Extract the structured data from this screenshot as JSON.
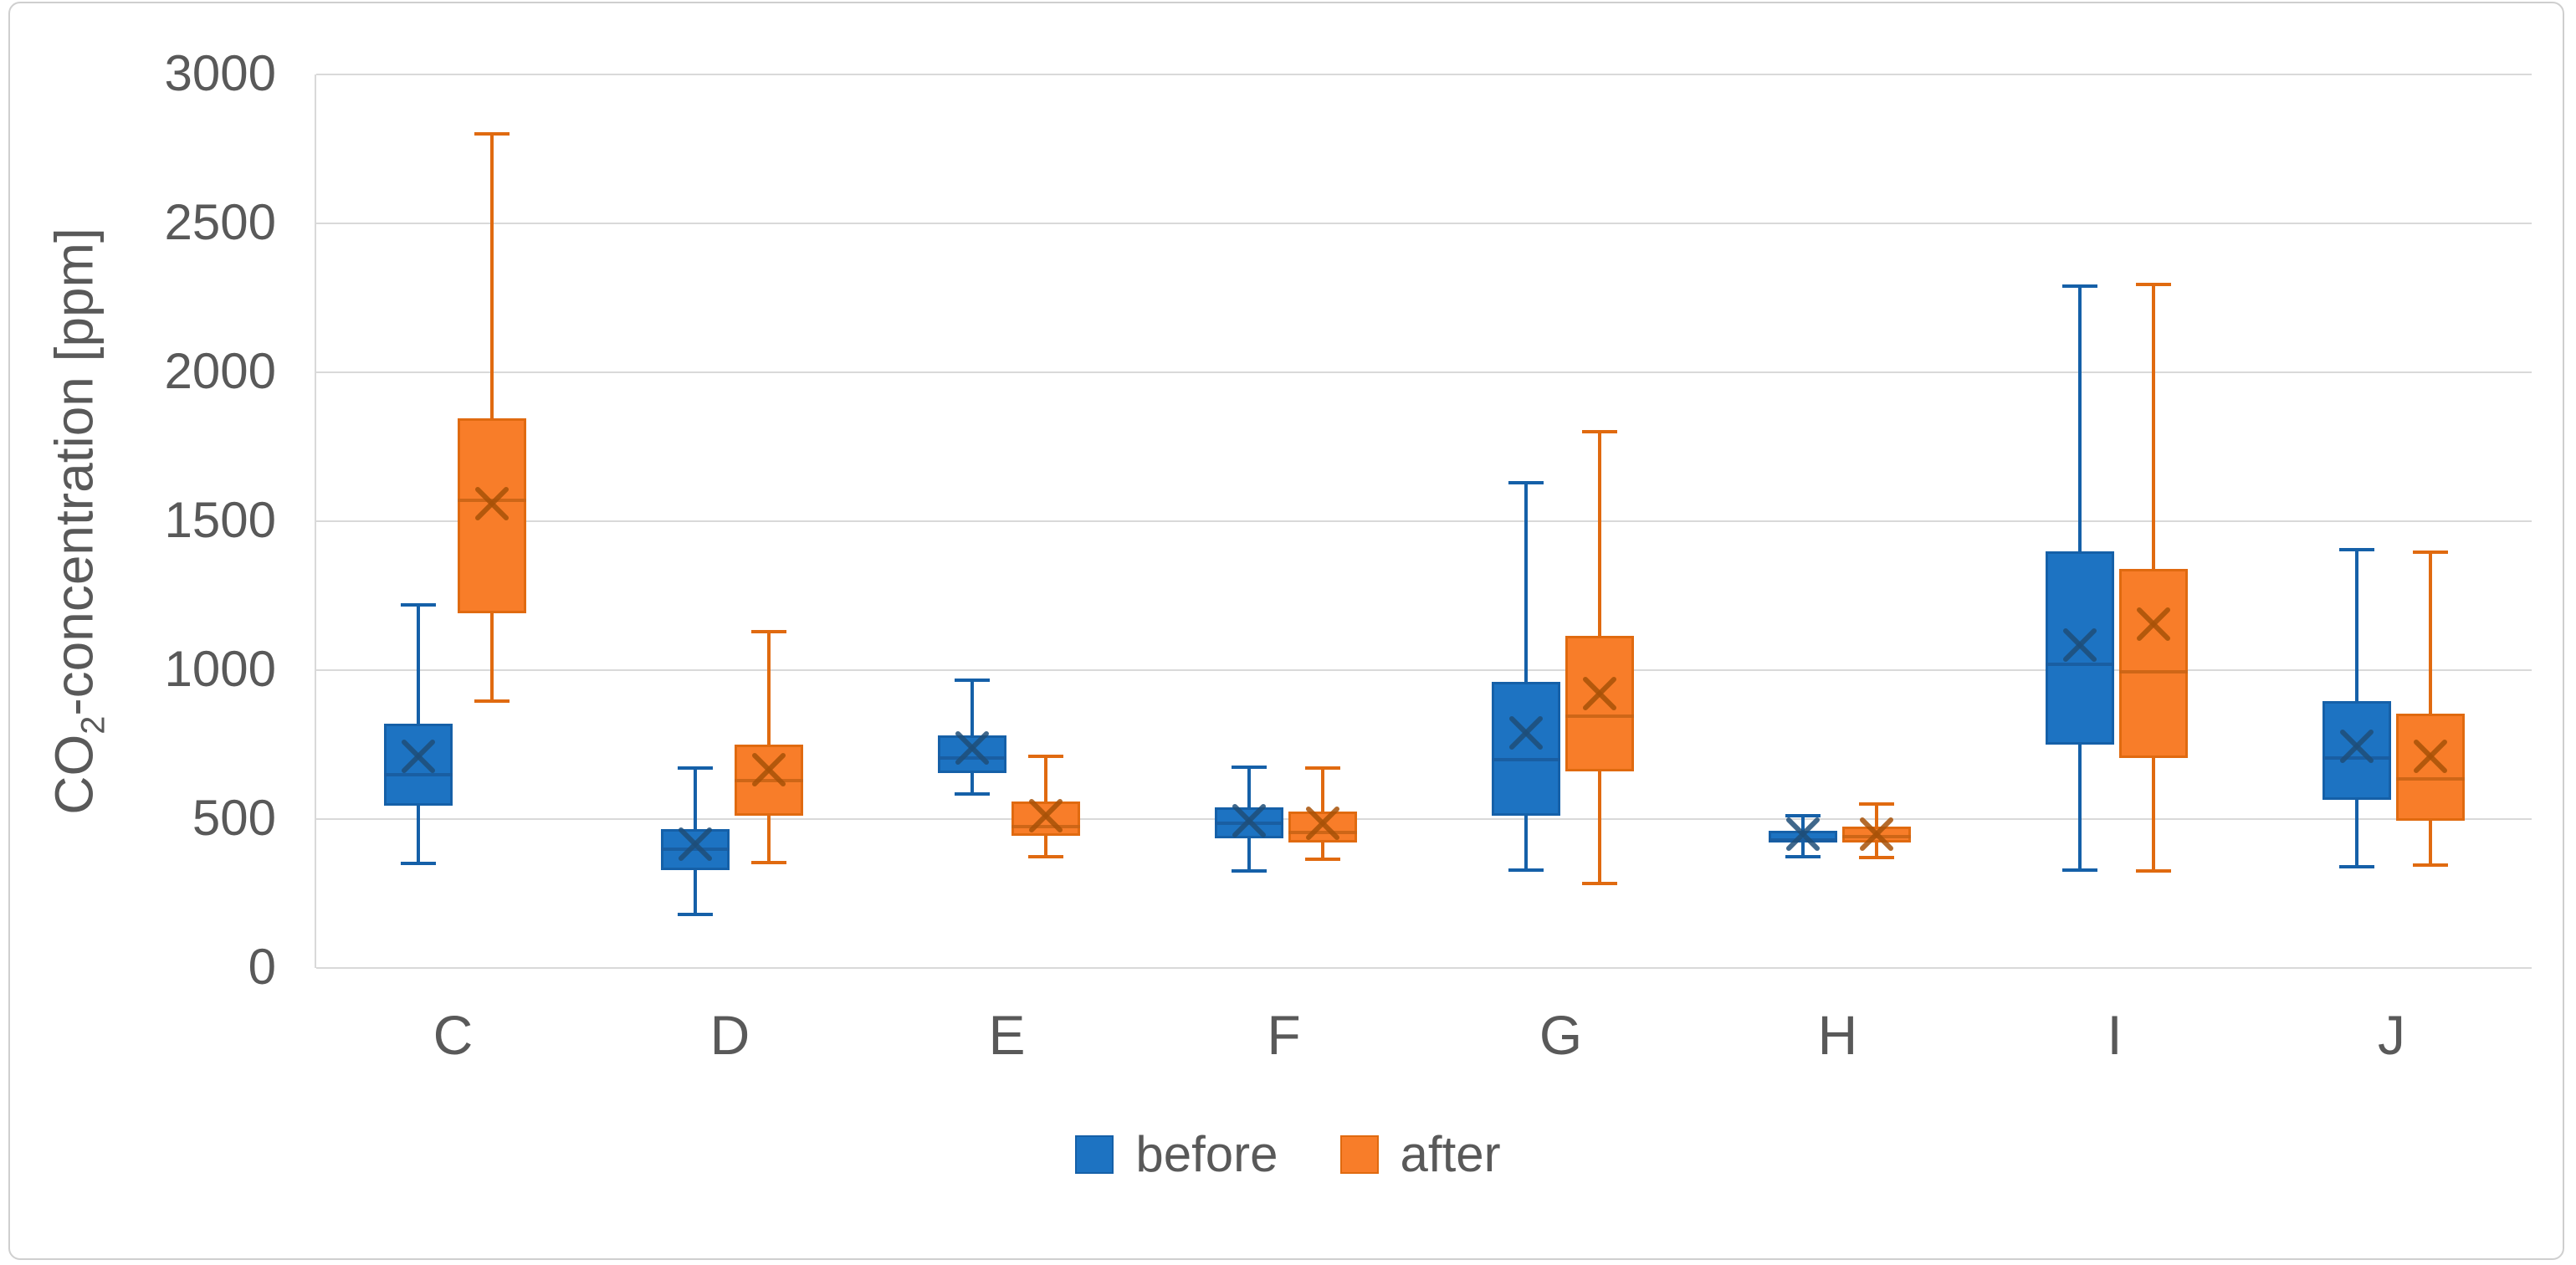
{
  "chart_data": {
    "type": "boxplot",
    "title": "",
    "ylabel": {
      "prefix": "CO",
      "sub": "2",
      "suffix": "-concentration [ppm]"
    },
    "xlabel": "",
    "ylim": [
      0,
      3000
    ],
    "yticks": [
      0,
      500,
      1000,
      1500,
      2000,
      2500,
      3000
    ],
    "grid": true,
    "legend_position": "bottom",
    "categories": [
      "C",
      "D",
      "E",
      "F",
      "G",
      "H",
      "I",
      "J"
    ],
    "series": [
      {
        "name": "before",
        "fill": "#1d73c2",
        "border": "#1560a8",
        "median_color": "#1a5c9e",
        "mean_color": "#1f4e79",
        "boxes": [
          {
            "min": 350,
            "q1": 545,
            "median": 650,
            "mean": 710,
            "q3": 820,
            "max": 1220
          },
          {
            "min": 180,
            "q1": 330,
            "median": 400,
            "mean": 415,
            "q3": 465,
            "max": 670
          },
          {
            "min": 585,
            "q1": 655,
            "median": 705,
            "mean": 740,
            "q3": 780,
            "max": 965
          },
          {
            "min": 325,
            "q1": 435,
            "median": 485,
            "mean": 495,
            "q3": 540,
            "max": 675
          },
          {
            "min": 330,
            "q1": 510,
            "median": 700,
            "mean": 790,
            "q3": 960,
            "max": 1630
          },
          {
            "min": 375,
            "q1": 420,
            "median": 430,
            "mean": 450,
            "q3": 460,
            "max": 510
          },
          {
            "min": 330,
            "q1": 750,
            "median": 1020,
            "mean": 1085,
            "q3": 1400,
            "max": 2290
          },
          {
            "min": 340,
            "q1": 565,
            "median": 705,
            "mean": 745,
            "q3": 895,
            "max": 1405
          }
        ]
      },
      {
        "name": "after",
        "fill": "#f87d29",
        "border": "#e06a10",
        "median_color": "#c96415",
        "mean_color": "#a85208",
        "boxes": [
          {
            "min": 895,
            "q1": 1190,
            "median": 1570,
            "mean": 1560,
            "q3": 1845,
            "max": 2800
          },
          {
            "min": 355,
            "q1": 510,
            "median": 630,
            "mean": 665,
            "q3": 750,
            "max": 1130
          },
          {
            "min": 375,
            "q1": 445,
            "median": 475,
            "mean": 510,
            "q3": 560,
            "max": 710
          },
          {
            "min": 365,
            "q1": 420,
            "median": 455,
            "mean": 485,
            "q3": 525,
            "max": 670
          },
          {
            "min": 285,
            "q1": 660,
            "median": 845,
            "mean": 920,
            "q3": 1115,
            "max": 1800
          },
          {
            "min": 370,
            "q1": 420,
            "median": 440,
            "mean": 450,
            "q3": 475,
            "max": 550
          },
          {
            "min": 325,
            "q1": 705,
            "median": 995,
            "mean": 1155,
            "q3": 1340,
            "max": 2295
          },
          {
            "min": 345,
            "q1": 495,
            "median": 635,
            "mean": 710,
            "q3": 855,
            "max": 1395
          }
        ]
      }
    ]
  },
  "colors": {
    "gridline": "#d9d9d9",
    "axis_text": "#595959",
    "background": "#ffffff",
    "frame_border": "#cfcfcf"
  },
  "legend": {
    "items": [
      {
        "label": "before"
      },
      {
        "label": "after"
      }
    ]
  }
}
